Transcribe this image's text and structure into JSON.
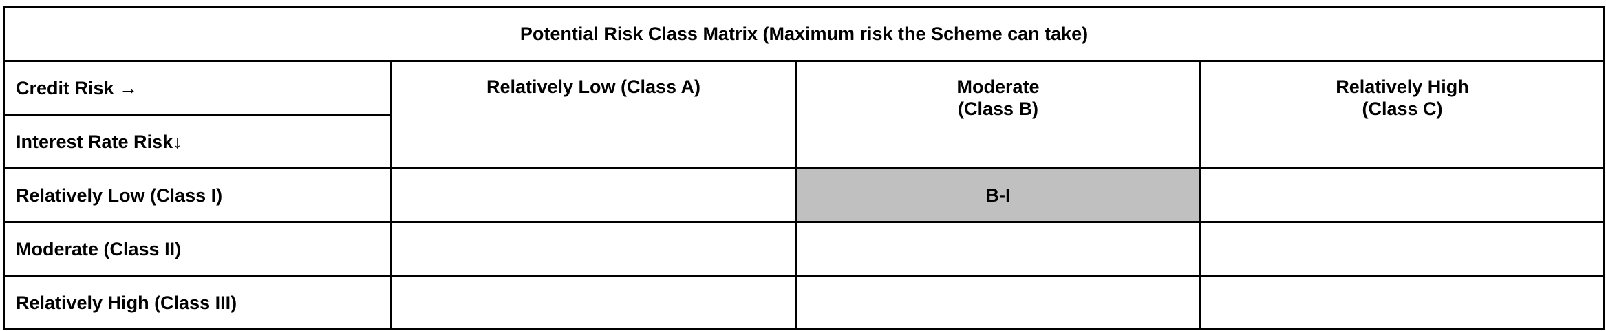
{
  "matrix": {
    "title": "Potential Risk Class Matrix (Maximum risk the Scheme can take)",
    "credit_risk_label": "Credit Risk →",
    "interest_rate_risk_label": "Interest Rate Risk↓",
    "columns": [
      {
        "line1": "Relatively Low (Class A)",
        "line2": ""
      },
      {
        "line1": "Moderate",
        "line2": "(Class B)"
      },
      {
        "line1": "Relatively High",
        "line2": "(Class C)"
      }
    ],
    "rows": [
      {
        "label": "Relatively Low (Class I)",
        "cells": [
          "",
          "B-I",
          ""
        ]
      },
      {
        "label": "Moderate (Class II)",
        "cells": [
          "",
          "",
          ""
        ]
      },
      {
        "label": "Relatively High (Class III)",
        "cells": [
          "",
          "",
          ""
        ]
      }
    ],
    "highlight_color": "#c0c0c0",
    "selected_class": "B-I"
  }
}
